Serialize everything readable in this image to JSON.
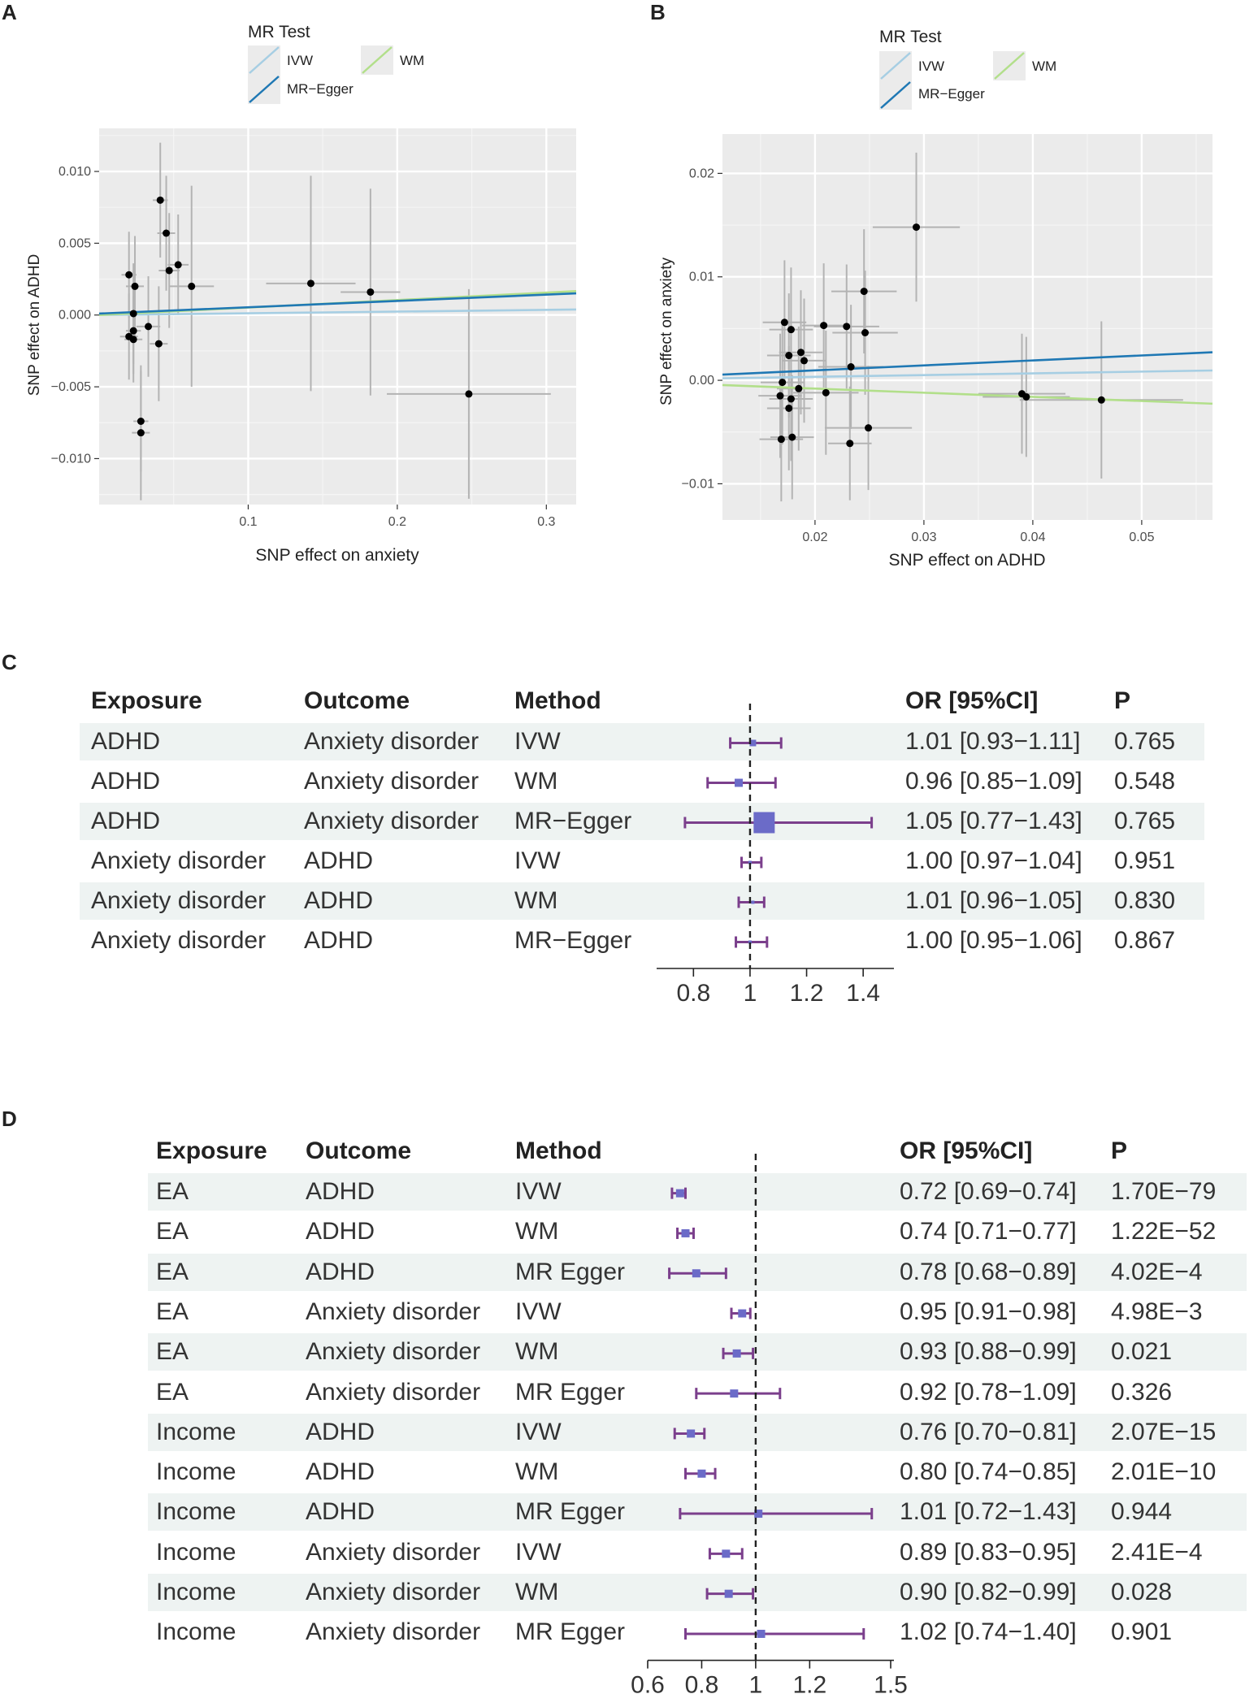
{
  "panels": {
    "A": {
      "letter": "A",
      "legend_title": "MR Test",
      "legend_items": [
        "IVW",
        "WM",
        "MR−Egger"
      ],
      "xlabel": "SNP effect on anxiety",
      "ylabel": "SNP effect on ADHD",
      "x_ticks": [
        "0.1",
        "0.2",
        "0.3"
      ],
      "y_ticks": [
        "0.010",
        "0.005",
        "0.000",
        "−0.005",
        "−0.010"
      ]
    },
    "B": {
      "letter": "B",
      "legend_title": "MR Test",
      "legend_items": [
        "IVW",
        "WM",
        "MR−Egger"
      ],
      "xlabel": "SNP effect on ADHD",
      "ylabel": "SNP effect on anxiety",
      "x_ticks": [
        "0.02",
        "0.03",
        "0.04",
        "0.05"
      ],
      "y_ticks": [
        "0.02",
        "0.01",
        "0.00",
        "−0.01"
      ]
    },
    "C": {
      "letter": "C",
      "headers": {
        "exposure": "Exposure",
        "outcome": "Outcome",
        "method": "Method",
        "or": "OR [95%CI]",
        "p": "P"
      },
      "axis_ticks": [
        "0.8",
        "1",
        "1.2",
        "1.4"
      ]
    },
    "D": {
      "letter": "D",
      "headers": {
        "exposure": "Exposure",
        "outcome": "Outcome",
        "method": "Method",
        "or": "OR [95%CI]",
        "p": "P"
      },
      "axis_ticks": [
        "0.6",
        "0.8",
        "1",
        "1.2",
        "1.5"
      ]
    }
  },
  "colors": {
    "ivw": "#a6cee3",
    "wm": "#b2df8a",
    "egger": "#1f78b4",
    "panel_bg": "#ebebeb",
    "forest_line": "#7b3f8c",
    "forest_box": "#6b6bc8",
    "row_shade": "#eef3f2",
    "point": "#000000",
    "errbar": "#b3b3b3"
  },
  "chart_data": [
    {
      "id": "A",
      "type": "scatter",
      "xlabel": "SNP effect on anxiety",
      "ylabel": "SNP effect on ADHD",
      "xlim": [
        0.0,
        0.32
      ],
      "ylim": [
        -0.0132,
        0.013
      ],
      "x_ticks": [
        0.1,
        0.2,
        0.3
      ],
      "y_ticks": [
        0.01,
        0.005,
        0.0,
        -0.005,
        -0.01
      ],
      "points": [
        {
          "x": 0.02,
          "y": 0.0028,
          "xe": 0.005,
          "ye": 0.003
        },
        {
          "x": 0.024,
          "y": 0.002,
          "xe": 0.006,
          "ye": 0.0035
        },
        {
          "x": 0.023,
          "y": 0.0001,
          "xe": 0.006,
          "ye": 0.0035
        },
        {
          "x": 0.02,
          "y": -0.0015,
          "xe": 0.006,
          "ye": 0.003
        },
        {
          "x": 0.023,
          "y": -0.0017,
          "xe": 0.006,
          "ye": 0.003
        },
        {
          "x": 0.023,
          "y": -0.0011,
          "xe": 0.005,
          "ye": 0.003
        },
        {
          "x": 0.028,
          "y": -0.0074,
          "xe": 0.005,
          "ye": 0.0035
        },
        {
          "x": 0.028,
          "y": -0.0082,
          "xe": 0.006,
          "ye": 0.0047
        },
        {
          "x": 0.033,
          "y": -0.0008,
          "xe": 0.008,
          "ye": 0.0035
        },
        {
          "x": 0.04,
          "y": -0.002,
          "xe": 0.006,
          "ye": 0.004
        },
        {
          "x": 0.041,
          "y": 0.008,
          "xe": 0.005,
          "ye": 0.004
        },
        {
          "x": 0.045,
          "y": 0.0057,
          "xe": 0.006,
          "ye": 0.004
        },
        {
          "x": 0.047,
          "y": 0.0031,
          "xe": 0.007,
          "ye": 0.004
        },
        {
          "x": 0.053,
          "y": 0.0035,
          "xe": 0.007,
          "ye": 0.0035
        },
        {
          "x": 0.062,
          "y": 0.002,
          "xe": 0.015,
          "ye": 0.007
        },
        {
          "x": 0.142,
          "y": 0.0022,
          "xe": 0.03,
          "ye": 0.0075
        },
        {
          "x": 0.182,
          "y": 0.0016,
          "xe": 0.02,
          "ye": 0.0072
        },
        {
          "x": 0.248,
          "y": -0.0055,
          "xe": 0.055,
          "ye": 0.0073
        }
      ],
      "lines": [
        {
          "name": "IVW",
          "intercept": 0.0,
          "slope": 0.0012
        },
        {
          "name": "WM",
          "intercept": 0.0,
          "slope": 0.0052
        },
        {
          "name": "MR−Egger",
          "intercept": 0.0001,
          "slope": 0.0044
        }
      ]
    },
    {
      "id": "B",
      "type": "scatter",
      "xlabel": "SNP effect on ADHD",
      "ylabel": "SNP effect on anxiety",
      "xlim": [
        0.0115,
        0.0565
      ],
      "ylim": [
        -0.0135,
        0.0238
      ],
      "x_ticks": [
        0.02,
        0.03,
        0.04,
        0.05
      ],
      "y_ticks": [
        0.02,
        0.01,
        0.0,
        -0.01
      ],
      "points": [
        {
          "x": 0.0293,
          "y": 0.0148,
          "xe": 0.004,
          "ye": 0.0072
        },
        {
          "x": 0.0245,
          "y": 0.0086,
          "xe": 0.003,
          "ye": 0.006
        },
        {
          "x": 0.0172,
          "y": 0.0056,
          "xe": 0.002,
          "ye": 0.006
        },
        {
          "x": 0.0208,
          "y": 0.0053,
          "xe": 0.002,
          "ye": 0.006
        },
        {
          "x": 0.0229,
          "y": 0.0052,
          "xe": 0.003,
          "ye": 0.006
        },
        {
          "x": 0.0178,
          "y": 0.0049,
          "xe": 0.002,
          "ye": 0.006
        },
        {
          "x": 0.0246,
          "y": 0.0046,
          "xe": 0.003,
          "ye": 0.006
        },
        {
          "x": 0.0176,
          "y": 0.0024,
          "xe": 0.002,
          "ye": 0.006
        },
        {
          "x": 0.0187,
          "y": 0.0027,
          "xe": 0.002,
          "ye": 0.006
        },
        {
          "x": 0.019,
          "y": 0.0019,
          "xe": 0.002,
          "ye": 0.006
        },
        {
          "x": 0.0233,
          "y": 0.0013,
          "xe": 0.003,
          "ye": 0.006
        },
        {
          "x": 0.017,
          "y": -0.0002,
          "xe": 0.002,
          "ye": 0.006
        },
        {
          "x": 0.0168,
          "y": -0.0015,
          "xe": 0.002,
          "ye": 0.006
        },
        {
          "x": 0.0178,
          "y": -0.0018,
          "xe": 0.002,
          "ye": 0.006
        },
        {
          "x": 0.021,
          "y": -0.0012,
          "xe": 0.003,
          "ye": 0.006
        },
        {
          "x": 0.0185,
          "y": -0.0008,
          "xe": 0.002,
          "ye": 0.006
        },
        {
          "x": 0.0176,
          "y": -0.0027,
          "xe": 0.002,
          "ye": 0.006
        },
        {
          "x": 0.0169,
          "y": -0.0057,
          "xe": 0.002,
          "ye": 0.006
        },
        {
          "x": 0.0179,
          "y": -0.0055,
          "xe": 0.002,
          "ye": 0.006
        },
        {
          "x": 0.0232,
          "y": -0.0061,
          "xe": 0.002,
          "ye": 0.0055
        },
        {
          "x": 0.0249,
          "y": -0.0046,
          "xe": 0.004,
          "ye": 0.006
        },
        {
          "x": 0.039,
          "y": -0.0013,
          "xe": 0.004,
          "ye": 0.0058
        },
        {
          "x": 0.0394,
          "y": -0.0016,
          "xe": 0.004,
          "ye": 0.0058
        },
        {
          "x": 0.0463,
          "y": -0.0019,
          "xe": 0.0075,
          "ye": 0.0076
        }
      ],
      "lines": [
        {
          "name": "IVW",
          "intercept": 0.0,
          "slope": 0.0168
        },
        {
          "name": "WM",
          "intercept": 0.0,
          "slope": -0.04
        },
        {
          "name": "MR−Egger",
          "intercept": 0.0,
          "slope": 0.048
        }
      ]
    },
    {
      "id": "C",
      "type": "forest",
      "xlim": [
        0.71,
        1.48
      ],
      "ref": 1,
      "ticks": [
        0.8,
        1,
        1.2,
        1.4
      ],
      "rows": [
        {
          "exposure": "ADHD",
          "outcome": "Anxiety disorder",
          "method": "IVW",
          "or": 1.01,
          "lo": 0.93,
          "hi": 1.11,
          "or_text": "1.01 [0.93−1.11]",
          "p": "0.765",
          "box": 4
        },
        {
          "exposure": "ADHD",
          "outcome": "Anxiety disorder",
          "method": "WM",
          "or": 0.96,
          "lo": 0.85,
          "hi": 1.09,
          "or_text": "0.96 [0.85−1.09]",
          "p": "0.548",
          "box": 5
        },
        {
          "exposure": "ADHD",
          "outcome": "Anxiety disorder",
          "method": "MR−Egger",
          "or": 1.05,
          "lo": 0.77,
          "hi": 1.43,
          "or_text": "1.05 [0.77−1.43]",
          "p": "0.765",
          "box": 13
        },
        {
          "exposure": "Anxiety disorder",
          "outcome": "ADHD",
          "method": "IVW",
          "or": 1.0,
          "lo": 0.97,
          "hi": 1.04,
          "or_text": "1.00 [0.97−1.04]",
          "p": "0.951",
          "box": 2
        },
        {
          "exposure": "Anxiety disorder",
          "outcome": "ADHD",
          "method": "WM",
          "or": 1.01,
          "lo": 0.96,
          "hi": 1.05,
          "or_text": "1.01 [0.96−1.05]",
          "p": "0.830",
          "box": 2
        },
        {
          "exposure": "Anxiety disorder",
          "outcome": "ADHD",
          "method": "MR−Egger",
          "or": 1.0,
          "lo": 0.95,
          "hi": 1.06,
          "or_text": "1.00 [0.95−1.06]",
          "p": "0.867",
          "box": 2
        }
      ]
    },
    {
      "id": "D",
      "type": "forest",
      "xlim": [
        0.6,
        1.5
      ],
      "ref": 1,
      "ticks": [
        0.6,
        0.8,
        1,
        1.2,
        1.5
      ],
      "tick_positions": [
        0.6,
        0.8,
        1,
        1.2,
        1.5
      ],
      "rows": [
        {
          "exposure": "EA",
          "outcome": "ADHD",
          "method": "IVW",
          "or": 0.72,
          "lo": 0.69,
          "hi": 0.74,
          "or_text": "0.72 [0.69−0.74]",
          "p": "1.70E−79",
          "box": 5
        },
        {
          "exposure": "EA",
          "outcome": "ADHD",
          "method": "WM",
          "or": 0.74,
          "lo": 0.71,
          "hi": 0.77,
          "or_text": "0.74 [0.71−0.77]",
          "p": "1.22E−52",
          "box": 5
        },
        {
          "exposure": "EA",
          "outcome": "ADHD",
          "method": "MR Egger",
          "or": 0.78,
          "lo": 0.68,
          "hi": 0.89,
          "or_text": "0.78 [0.68−0.89]",
          "p": "4.02E−4",
          "box": 5
        },
        {
          "exposure": "EA",
          "outcome": "Anxiety disorder",
          "method": "IVW",
          "or": 0.95,
          "lo": 0.91,
          "hi": 0.98,
          "or_text": "0.95 [0.91−0.98]",
          "p": "4.98E−3",
          "box": 5
        },
        {
          "exposure": "EA",
          "outcome": "Anxiety disorder",
          "method": "WM",
          "or": 0.93,
          "lo": 0.88,
          "hi": 0.99,
          "or_text": "0.93 [0.88−0.99]",
          "p": "0.021",
          "box": 5
        },
        {
          "exposure": "EA",
          "outcome": "Anxiety disorder",
          "method": "MR Egger",
          "or": 0.92,
          "lo": 0.78,
          "hi": 1.09,
          "or_text": "0.92 [0.78−1.09]",
          "p": "0.326",
          "box": 5
        },
        {
          "exposure": "Income",
          "outcome": "ADHD",
          "method": "IVW",
          "or": 0.76,
          "lo": 0.7,
          "hi": 0.81,
          "or_text": "0.76 [0.70−0.81]",
          "p": "2.07E−15",
          "box": 5
        },
        {
          "exposure": "Income",
          "outcome": "ADHD",
          "method": "WM",
          "or": 0.8,
          "lo": 0.74,
          "hi": 0.85,
          "or_text": "0.80 [0.74−0.85]",
          "p": "2.01E−10",
          "box": 5
        },
        {
          "exposure": "Income",
          "outcome": "ADHD",
          "method": "MR Egger",
          "or": 1.01,
          "lo": 0.72,
          "hi": 1.43,
          "or_text": "1.01 [0.72−1.43]",
          "p": "0.944",
          "box": 5
        },
        {
          "exposure": "Income",
          "outcome": "Anxiety disorder",
          "method": "IVW",
          "or": 0.89,
          "lo": 0.83,
          "hi": 0.95,
          "or_text": "0.89 [0.83−0.95]",
          "p": "2.41E−4",
          "box": 5
        },
        {
          "exposure": "Income",
          "outcome": "Anxiety disorder",
          "method": "WM",
          "or": 0.9,
          "lo": 0.82,
          "hi": 0.99,
          "or_text": "0.90 [0.82−0.99]",
          "p": "0.028",
          "box": 5
        },
        {
          "exposure": "Income",
          "outcome": "Anxiety disorder",
          "method": "MR Egger",
          "or": 1.02,
          "lo": 0.74,
          "hi": 1.4,
          "or_text": "1.02 [0.74−1.40]",
          "p": "0.901",
          "box": 5
        }
      ]
    }
  ]
}
